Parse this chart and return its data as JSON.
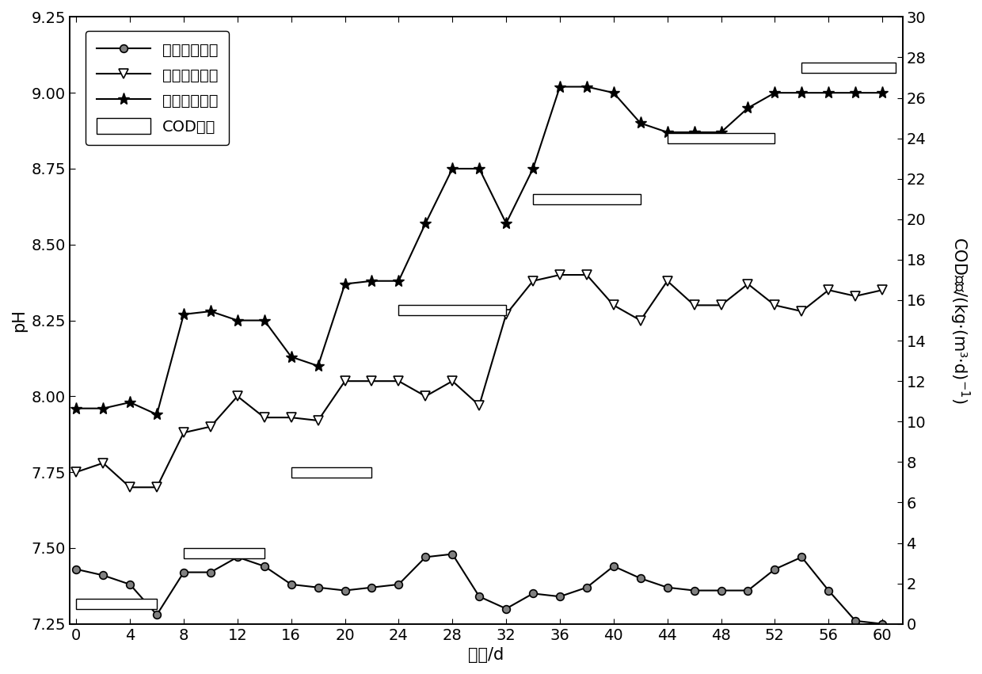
{
  "x_ticks": [
    0,
    4,
    8,
    12,
    16,
    20,
    24,
    28,
    32,
    36,
    40,
    44,
    48,
    52,
    56,
    60
  ],
  "xlabel": "时间/d",
  "ylabel_left": "pH",
  "ylabel_right": "COD负荷/(kg·(m³·d)⁻¹)",
  "series1_label": "一级厉氧进水",
  "series1_x": [
    0,
    2,
    4,
    6,
    8,
    10,
    12,
    14,
    16,
    18,
    20,
    22,
    24,
    26,
    28,
    30,
    32,
    34,
    36,
    38,
    40,
    42,
    44,
    46,
    48,
    50,
    52,
    54,
    56,
    58,
    60
  ],
  "series1_y": [
    7.43,
    7.41,
    7.38,
    7.28,
    7.42,
    7.42,
    7.47,
    7.44,
    7.38,
    7.37,
    7.36,
    7.37,
    7.38,
    7.47,
    7.48,
    7.34,
    7.3,
    7.35,
    7.34,
    7.37,
    7.44,
    7.4,
    7.37,
    7.36,
    7.36,
    7.36,
    7.43,
    7.47,
    7.36,
    7.26,
    7.25
  ],
  "series2_label": "一级厉氧出水",
  "series2_x": [
    0,
    2,
    4,
    6,
    8,
    10,
    12,
    14,
    16,
    18,
    20,
    22,
    24,
    26,
    28,
    30,
    32,
    34,
    36,
    38,
    40,
    42,
    44,
    46,
    48,
    50,
    52,
    54,
    56,
    58,
    60
  ],
  "series2_y": [
    7.75,
    7.78,
    7.7,
    7.7,
    7.88,
    7.9,
    8.0,
    7.93,
    7.93,
    7.92,
    8.05,
    8.05,
    8.05,
    8.0,
    8.05,
    7.97,
    8.27,
    8.38,
    8.4,
    8.4,
    8.3,
    8.25,
    8.38,
    8.3,
    8.3,
    8.37,
    8.3,
    8.28,
    8.35,
    8.33,
    8.35
  ],
  "series3_label": "二级厉氧出水",
  "series3_x": [
    0,
    2,
    4,
    6,
    8,
    10,
    12,
    14,
    16,
    18,
    20,
    22,
    24,
    26,
    28,
    30,
    32,
    34,
    36,
    38,
    40,
    42,
    44,
    46,
    48,
    50,
    52,
    54,
    56,
    58,
    60
  ],
  "series3_y": [
    7.96,
    7.96,
    7.98,
    7.94,
    8.27,
    8.28,
    8.25,
    8.25,
    8.13,
    8.1,
    8.37,
    8.38,
    8.38,
    8.57,
    8.75,
    8.75,
    8.57,
    8.75,
    9.02,
    9.02,
    9.0,
    8.9,
    8.87,
    8.87,
    8.87,
    8.95,
    9.0,
    9.0,
    9.0,
    9.0,
    9.0
  ],
  "cod_segments": [
    {
      "x_start": 0,
      "x_end": 6,
      "y_cod": 1.0
    },
    {
      "x_start": 8,
      "x_end": 14,
      "y_cod": 3.5
    },
    {
      "x_start": 16,
      "x_end": 22,
      "y_cod": 7.5
    },
    {
      "x_start": 24,
      "x_end": 32,
      "y_cod": 15.5
    },
    {
      "x_start": 34,
      "x_end": 42,
      "y_cod": 21.0
    },
    {
      "x_start": 44,
      "x_end": 52,
      "y_cod": 24.0
    },
    {
      "x_start": 54,
      "x_end": 61,
      "y_cod": 27.5
    }
  ],
  "cod_bar_height": 0.5,
  "ylim_left": [
    7.25,
    9.25
  ],
  "ylim_right": [
    0,
    30
  ],
  "xlim": [
    -0.5,
    61.5
  ],
  "yticks_left": [
    7.25,
    7.5,
    7.75,
    8.0,
    8.25,
    8.5,
    8.75,
    9.0,
    9.25
  ],
  "yticks_right": [
    0,
    2,
    4,
    6,
    8,
    10,
    12,
    14,
    16,
    18,
    20,
    22,
    24,
    26,
    28,
    30
  ],
  "background_color": "#ffffff",
  "fontsize": 15,
  "tick_fontsize": 14,
  "legend_label_cod": "COD负荷"
}
